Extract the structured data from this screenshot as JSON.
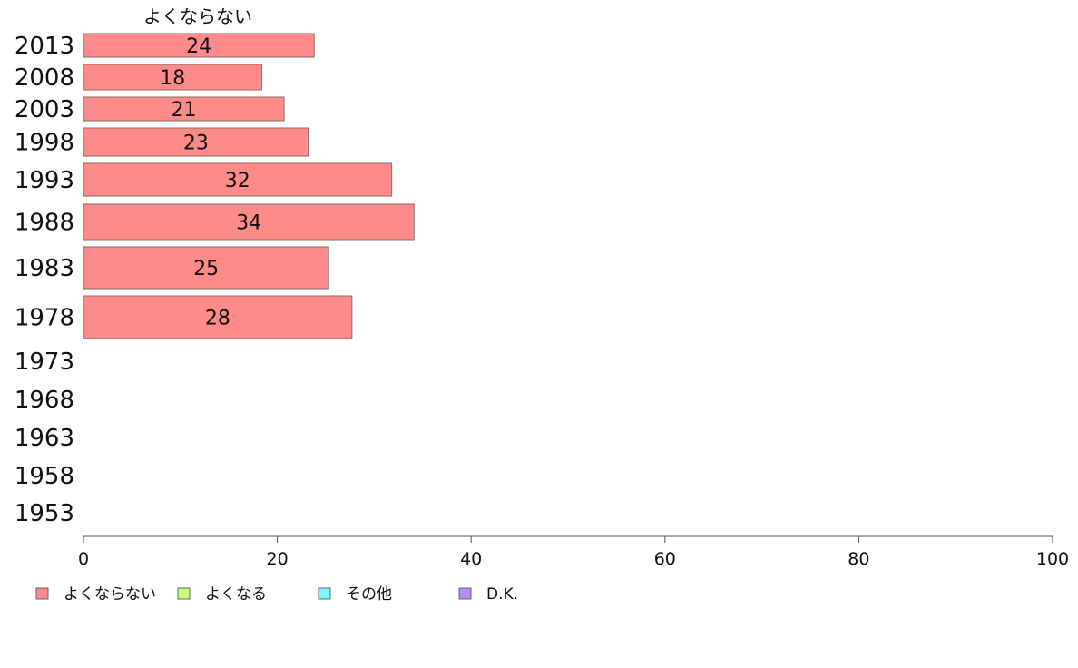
{
  "chart_data": {
    "type": "bar",
    "orientation": "horizontal",
    "series_title": "よくならない",
    "categories": [
      "2013",
      "2008",
      "2003",
      "1998",
      "1993",
      "1988",
      "1983",
      "1978",
      "1973",
      "1968",
      "1963",
      "1958",
      "1953"
    ],
    "series": [
      {
        "name": "よくならない",
        "color": "#ff8a8a",
        "values": [
          23.8,
          18.4,
          20.7,
          23.2,
          31.8,
          34.1,
          25.3,
          27.7,
          null,
          null,
          null,
          null,
          null
        ]
      }
    ],
    "value_labels": [
      "24",
      "18",
      "21",
      "23",
      "32",
      "34",
      "25",
      "28",
      "",
      "",
      "",
      "",
      ""
    ],
    "xlim": [
      0,
      100
    ],
    "xticks": [
      0,
      20,
      40,
      60,
      80,
      100
    ],
    "grid": false,
    "legend_position": "bottom-left",
    "legend": [
      {
        "label": "よくならない",
        "color": "#ff8a8a"
      },
      {
        "label": "よくなる",
        "color": "#c6ff7a"
      },
      {
        "label": "その他",
        "color": "#7af5ff"
      },
      {
        "label": "D.K.",
        "color": "#b38aff"
      }
    ]
  }
}
